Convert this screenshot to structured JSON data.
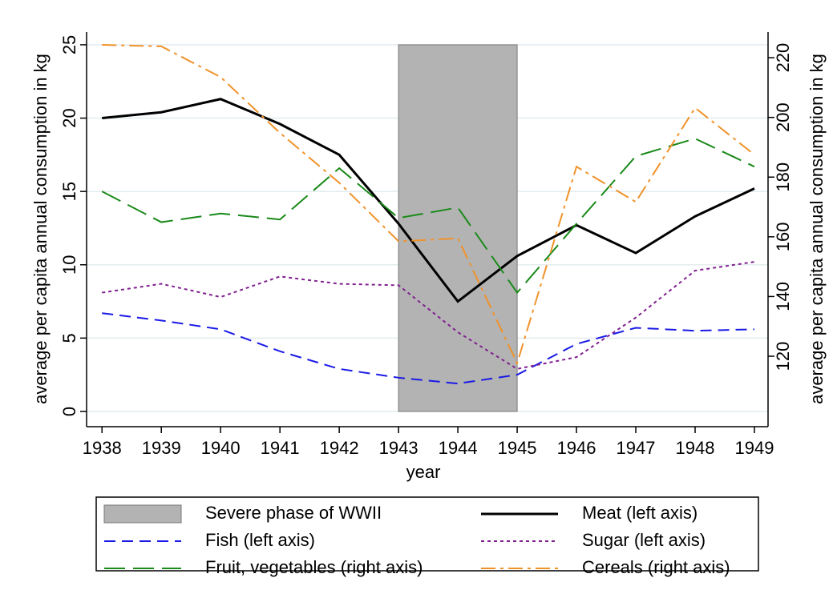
{
  "chart_data": {
    "type": "line",
    "x_label": "year",
    "y_label": "average per capita annual consumption in kg",
    "y2_label": "average per capita annual consumption in kg",
    "x": [
      1938,
      1939,
      1940,
      1941,
      1942,
      1943,
      1944,
      1945,
      1946,
      1947,
      1948,
      1949
    ],
    "xlim": [
      1937.74,
      1949.23
    ],
    "xticks": [
      1938,
      1939,
      1940,
      1941,
      1942,
      1943,
      1944,
      1945,
      1946,
      1947,
      1948,
      1949
    ],
    "ylim": [
      -1.04,
      25.87
    ],
    "yticks": [
      0,
      5,
      10,
      15,
      20,
      25
    ],
    "y2lim": [
      96.4,
      228.6
    ],
    "y2ticks": [
      120,
      140,
      160,
      180,
      200,
      220
    ],
    "grid": true,
    "shaded_regions": [
      {
        "name": "Severe phase of WWII",
        "x": [
          1943,
          1945
        ],
        "y": [
          0,
          25
        ],
        "color": "#b3b3b3"
      }
    ],
    "series": [
      {
        "name": "Meat (left axis)",
        "color": "#000000",
        "dash": "solid",
        "axis": "y",
        "values": [
          20.0,
          20.4,
          21.3,
          19.6,
          17.5,
          12.8,
          7.5,
          10.6,
          12.7,
          10.8,
          13.3,
          15.2
        ]
      },
      {
        "name": "Fish (left axis)",
        "color": "#1a1ae6",
        "dash": "dashed",
        "axis": "y",
        "values": [
          6.7,
          6.2,
          5.6,
          4.1,
          2.9,
          2.3,
          1.9,
          2.5,
          4.6,
          5.7,
          5.5,
          5.6
        ]
      },
      {
        "name": "Sugar (left axis)",
        "color": "#80208f",
        "dash": "dotted",
        "axis": "y",
        "values": [
          8.1,
          8.7,
          7.8,
          9.2,
          8.7,
          8.6,
          5.4,
          2.9,
          3.7,
          6.4,
          9.6,
          10.2
        ]
      },
      {
        "name": "Fruit, vegetables (right axis)",
        "color": "#1a8a1a",
        "dash": "longdash",
        "axis": "y2",
        "values": [
          175.2,
          164.9,
          167.8,
          165.8,
          183.0,
          166.3,
          169.8,
          141.3,
          164.4,
          187.0,
          192.9,
          183.5
        ]
      },
      {
        "name": "Cereals (right axis)",
        "color": "#f0922a",
        "dash": "dashdot",
        "axis": "y2",
        "values": [
          224.3,
          223.8,
          213.5,
          194.8,
          178.1,
          158.5,
          159.5,
          117.7,
          183.5,
          171.7,
          203.2,
          187.5
        ]
      }
    ]
  }
}
